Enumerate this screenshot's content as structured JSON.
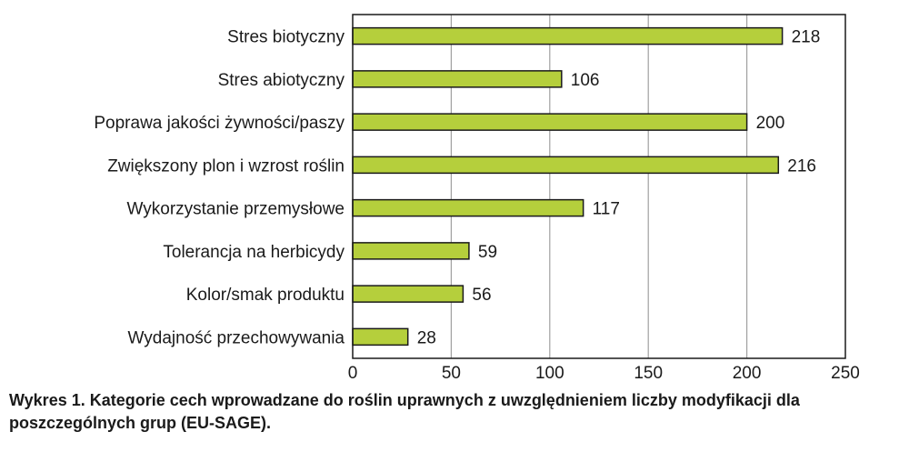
{
  "chart_data": {
    "type": "bar",
    "orientation": "horizontal",
    "categories": [
      "Stres biotyczny",
      "Stres abiotyczny",
      "Poprawa jakości żywności/paszy",
      "Zwiększony plon i wzrost roślin",
      "Wykorzystanie przemysłowe",
      "Tolerancja na herbicydy",
      "Kolor/smak produktu",
      "Wydajność przechowywania"
    ],
    "values": [
      218,
      106,
      200,
      216,
      117,
      59,
      56,
      28
    ],
    "xlim": [
      0,
      250
    ],
    "xticks": [
      0,
      50,
      100,
      150,
      200,
      250
    ],
    "grid": "vertical",
    "bar_color": "#b5cf3c",
    "bar_edge_color": "#1a1a1a",
    "grid_color": "#a0a0a0"
  },
  "caption": "Wykres 1. Kategorie cech wprowadzane do roślin uprawnych z uwzględnieniem liczby modyfikacji dla poszczególnych grup (EU-SAGE)."
}
